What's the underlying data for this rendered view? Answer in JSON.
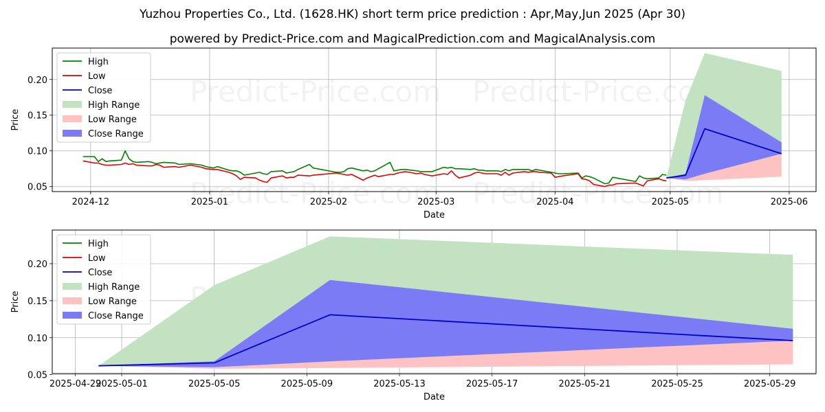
{
  "title": "Yuzhou Properties Co., Ltd. (1628.HK) short term price prediction : Apr,May,Jun 2025 (Apr 30)",
  "subtitle": "powered by Predict-Price.com and MagicalPrediction.com and MagicalAnalysis.com",
  "watermark": "Predict-Price.com",
  "legend": [
    "High",
    "Low",
    "Close",
    "High Range",
    "Low Range",
    "Close Range"
  ],
  "colors": {
    "high": "#008000",
    "low": "#e00000",
    "close": "#0000cc",
    "high_range": "#c2e2c2",
    "low_range": "#ffc2c2",
    "close_range": "#7b7bf5",
    "grid": "#b0b0b0"
  },
  "chart_data": [
    {
      "type": "line",
      "xlabel": "Date",
      "ylabel": "Price",
      "xlim": [
        "2024-11-21",
        "2025-06-08"
      ],
      "ylim": [
        0.043,
        0.244
      ],
      "xticks": [
        "2024-12",
        "2025-01",
        "2025-02",
        "2025-03",
        "2025-04",
        "2025-05",
        "2025-06"
      ],
      "yticks": [
        "0.05",
        "0.10",
        "0.15",
        "0.20"
      ],
      "legend_loc": "upper-left",
      "grid": true,
      "history": {
        "dates": [
          "2024-11-29",
          "2024-12-02",
          "2024-12-03",
          "2024-12-04",
          "2024-12-05",
          "2024-12-06",
          "2024-12-09",
          "2024-12-10",
          "2024-12-11",
          "2024-12-12",
          "2024-12-13",
          "2024-12-16",
          "2024-12-17",
          "2024-12-18",
          "2024-12-19",
          "2024-12-20",
          "2024-12-23",
          "2024-12-24",
          "2024-12-27",
          "2024-12-30",
          "2024-12-31",
          "2025-01-02",
          "2025-01-03",
          "2025-01-06",
          "2025-01-07",
          "2025-01-08",
          "2025-01-09",
          "2025-01-10",
          "2025-01-13",
          "2025-01-14",
          "2025-01-15",
          "2025-01-16",
          "2025-01-17",
          "2025-01-20",
          "2025-01-21",
          "2025-01-22",
          "2025-01-23",
          "2025-01-24",
          "2025-01-27",
          "2025-01-28",
          "2025-02-03",
          "2025-02-04",
          "2025-02-05",
          "2025-02-06",
          "2025-02-07",
          "2025-02-10",
          "2025-02-11",
          "2025-02-12",
          "2025-02-13",
          "2025-02-14",
          "2025-02-17",
          "2025-02-18",
          "2025-02-19",
          "2025-02-20",
          "2025-02-21",
          "2025-02-24",
          "2025-02-25",
          "2025-02-26",
          "2025-02-27",
          "2025-02-28",
          "2025-03-03",
          "2025-03-04",
          "2025-03-05",
          "2025-03-06",
          "2025-03-07",
          "2025-03-10",
          "2025-03-11",
          "2025-03-12",
          "2025-03-13",
          "2025-03-14",
          "2025-03-17",
          "2025-03-18",
          "2025-03-19",
          "2025-03-20",
          "2025-03-21",
          "2025-03-24",
          "2025-03-25",
          "2025-03-26",
          "2025-03-27",
          "2025-03-28",
          "2025-03-31",
          "2025-04-01",
          "2025-04-02",
          "2025-04-03",
          "2025-04-07",
          "2025-04-08",
          "2025-04-09",
          "2025-04-10",
          "2025-04-11",
          "2025-04-14",
          "2025-04-15",
          "2025-04-16",
          "2025-04-17",
          "2025-04-22",
          "2025-04-23",
          "2025-04-24",
          "2025-04-25",
          "2025-04-28",
          "2025-04-29",
          "2025-04-30"
        ],
        "high": [
          0.092,
          0.092,
          0.085,
          0.089,
          0.085,
          0.086,
          0.087,
          0.1,
          0.089,
          0.085,
          0.084,
          0.085,
          0.084,
          0.082,
          0.083,
          0.084,
          0.083,
          0.081,
          0.082,
          0.08,
          0.078,
          0.076,
          0.078,
          0.073,
          0.072,
          0.072,
          0.07,
          0.066,
          0.069,
          0.07,
          0.068,
          0.067,
          0.071,
          0.072,
          0.069,
          0.07,
          0.071,
          0.074,
          0.081,
          0.076,
          0.07,
          0.07,
          0.071,
          0.075,
          0.076,
          0.072,
          0.073,
          0.071,
          0.072,
          0.075,
          0.084,
          0.072,
          0.073,
          0.074,
          0.074,
          0.072,
          0.071,
          0.071,
          0.071,
          0.071,
          0.077,
          0.076,
          0.077,
          0.075,
          0.075,
          0.074,
          0.075,
          0.073,
          0.073,
          0.072,
          0.072,
          0.071,
          0.074,
          0.072,
          0.074,
          0.074,
          0.074,
          0.072,
          0.074,
          0.073,
          0.07,
          0.069,
          0.068,
          0.068,
          0.069,
          0.062,
          0.065,
          0.064,
          0.062,
          0.054,
          0.055,
          0.063,
          0.062,
          0.057,
          0.065,
          0.062,
          0.061,
          0.062,
          0.067,
          0.066
        ],
        "low": [
          0.086,
          0.083,
          0.083,
          0.081,
          0.08,
          0.08,
          0.081,
          0.083,
          0.081,
          0.082,
          0.08,
          0.079,
          0.079,
          0.081,
          0.08,
          0.077,
          0.078,
          0.077,
          0.08,
          0.077,
          0.075,
          0.074,
          0.074,
          0.07,
          0.068,
          0.065,
          0.06,
          0.063,
          0.062,
          0.059,
          0.057,
          0.056,
          0.062,
          0.065,
          0.062,
          0.063,
          0.063,
          0.066,
          0.065,
          0.066,
          0.069,
          0.068,
          0.067,
          0.066,
          0.067,
          0.059,
          0.062,
          0.064,
          0.066,
          0.064,
          0.067,
          0.067,
          0.069,
          0.07,
          0.071,
          0.068,
          0.069,
          0.067,
          0.066,
          0.065,
          0.068,
          0.067,
          0.072,
          0.066,
          0.062,
          0.066,
          0.069,
          0.07,
          0.069,
          0.068,
          0.068,
          0.066,
          0.07,
          0.066,
          0.069,
          0.071,
          0.07,
          0.071,
          0.071,
          0.07,
          0.069,
          0.063,
          0.064,
          0.065,
          0.068,
          0.061,
          0.06,
          0.058,
          0.053,
          0.05,
          0.052,
          0.052,
          0.054,
          0.055,
          0.053,
          0.051,
          0.058,
          0.061,
          0.059,
          0.058
        ]
      },
      "prediction": {
        "dates": [
          "2025-04-30",
          "2025-05-05",
          "2025-05-10",
          "2025-05-30"
        ],
        "close": [
          0.062,
          0.066,
          0.131,
          0.096
        ],
        "close_range_low": [
          0.062,
          0.06,
          0.068,
          0.096
        ],
        "close_range_high": [
          0.062,
          0.068,
          0.178,
          0.112
        ],
        "high_range_low": [
          0.062,
          0.06,
          0.068,
          0.096
        ],
        "high_range_high": [
          0.062,
          0.171,
          0.237,
          0.212
        ],
        "low_range_low": [
          0.062,
          0.058,
          0.059,
          0.064
        ],
        "low_range_high": [
          0.062,
          0.06,
          0.068,
          0.096
        ]
      }
    },
    {
      "type": "line",
      "xlabel": "Date",
      "ylabel": "Price",
      "xlim": [
        "2025-04-28",
        "2025-05-31"
      ],
      "ylim": [
        0.0515,
        0.2455
      ],
      "xticks": [
        "2025-04-29",
        "2025-05-01",
        "2025-05-05",
        "2025-05-09",
        "2025-05-13",
        "2025-05-17",
        "2025-05-21",
        "2025-05-25",
        "2025-05-29"
      ],
      "yticks": [
        "0.05",
        "0.10",
        "0.15",
        "0.20"
      ],
      "legend_loc": "upper-left",
      "grid": true,
      "prediction": {
        "dates": [
          "2025-04-30",
          "2025-05-05",
          "2025-05-10",
          "2025-05-30"
        ],
        "close": [
          0.062,
          0.066,
          0.131,
          0.096
        ],
        "close_range_low": [
          0.062,
          0.06,
          0.068,
          0.096
        ],
        "close_range_high": [
          0.062,
          0.068,
          0.178,
          0.112
        ],
        "high_range_low": [
          0.062,
          0.06,
          0.068,
          0.096
        ],
        "high_range_high": [
          0.062,
          0.171,
          0.237,
          0.212
        ],
        "low_range_low": [
          0.062,
          0.058,
          0.059,
          0.064
        ],
        "low_range_high": [
          0.062,
          0.06,
          0.068,
          0.096
        ]
      }
    }
  ]
}
